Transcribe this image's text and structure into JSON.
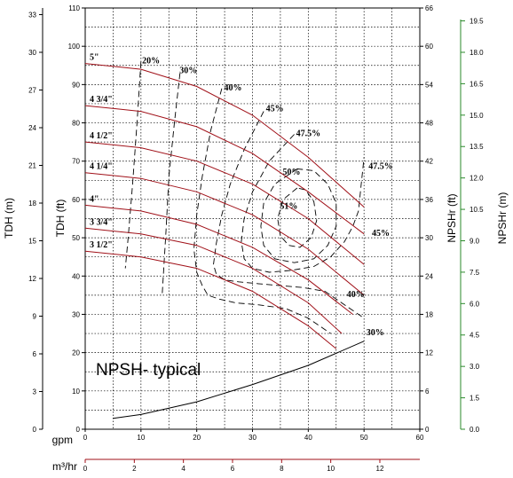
{
  "chart_data": {
    "type": "line",
    "ylim": [
      0,
      110
    ],
    "xlim": [
      0,
      60
    ],
    "colors": {
      "impeller_curve": "#a01018",
      "efficiency_curve": "#000000",
      "npsh_curve": "#000000",
      "grid": "#000000",
      "right_axis": "#2a8a2a"
    },
    "grid": true,
    "axes": {
      "tdh_m": {
        "label": "TDH (m)",
        "ticks": [
          "0",
          "3",
          "6",
          "9",
          "12",
          "15",
          "18",
          "21",
          "24",
          "27",
          "30",
          "33"
        ]
      },
      "tdh_ft": {
        "label": "TDH (ft)",
        "ticks": [
          "0",
          "10",
          "20",
          "30",
          "40",
          "50",
          "60",
          "70",
          "80",
          "90",
          "100",
          "110"
        ]
      },
      "npshr_ft": {
        "label": "NPSHr (ft)",
        "ticks": [
          "0",
          "6",
          "12",
          "18",
          "24",
          "30",
          "36",
          "42",
          "48",
          "54",
          "60",
          "66"
        ]
      },
      "npshr_m": {
        "label": "NPSHr (m)",
        "ticks": [
          "0.0",
          "1.5",
          "3.0",
          "4.5",
          "6.0",
          "7.5",
          "9.0",
          "10.5",
          "12.0",
          "13.5",
          "15.0",
          "16.5",
          "18.0",
          "19.5"
        ]
      },
      "gpm": {
        "label": "gpm",
        "ticks": [
          "0",
          "10",
          "20",
          "30",
          "40",
          "50",
          "60"
        ]
      },
      "m3hr": {
        "label": "m³/hr",
        "ticks": [
          "0",
          "2",
          "4",
          "6",
          "8",
          "10",
          "12"
        ]
      }
    },
    "impeller_series": [
      {
        "name": "5\"",
        "x": [
          0,
          10,
          20,
          30,
          40,
          50
        ],
        "y": [
          95.5,
          94,
          89.5,
          82,
          71,
          58
        ]
      },
      {
        "name": "4 3/4\"",
        "x": [
          0,
          10,
          20,
          30,
          40,
          50
        ],
        "y": [
          84.5,
          83,
          79,
          72,
          62,
          51
        ]
      },
      {
        "name": "4 1/2\"",
        "x": [
          0,
          10,
          20,
          30,
          40,
          50
        ],
        "y": [
          75,
          73.5,
          70,
          64,
          55,
          43
        ]
      },
      {
        "name": "4 1/4\"",
        "x": [
          0,
          10,
          20,
          30,
          40,
          50
        ],
        "y": [
          67,
          65.5,
          62,
          56,
          47,
          35
        ]
      },
      {
        "name": "4\"",
        "x": [
          0,
          10,
          20,
          30,
          40,
          48
        ],
        "y": [
          58.5,
          57,
          53.5,
          47.5,
          39,
          30
        ]
      },
      {
        "name": "3 3/4\"",
        "x": [
          0,
          10,
          20,
          30,
          40,
          46
        ],
        "y": [
          52.5,
          51,
          48,
          42,
          33,
          25
        ]
      },
      {
        "name": "3 1/2\"",
        "x": [
          0,
          10,
          20,
          30,
          40,
          45
        ],
        "y": [
          46.5,
          45,
          42,
          36,
          27,
          21
        ]
      }
    ],
    "efficiency_contours": [
      {
        "name": "20%",
        "x": [
          10,
          9.3,
          8.5,
          7.7,
          7.2
        ],
        "y": [
          96,
          80,
          64,
          50,
          42
        ]
      },
      {
        "name": "30%",
        "x": [
          17,
          16,
          15,
          14.5,
          14,
          13.8
        ],
        "y": [
          93,
          80,
          66,
          52,
          40,
          35
        ]
      },
      {
        "name": "40%",
        "x": [
          24.5,
          22.5,
          21,
          20,
          19.5,
          20,
          21,
          22,
          24,
          27,
          31,
          36,
          40,
          44
        ],
        "y": [
          89,
          78,
          66,
          56,
          47,
          41,
          37.5,
          35,
          34,
          33,
          32.5,
          31.5,
          29,
          25
        ]
      },
      {
        "name": "45%",
        "x": [
          32,
          28.5,
          26,
          24.5,
          23.5,
          23,
          23.5,
          25,
          27.5,
          31,
          35,
          39,
          43,
          46,
          50
        ],
        "y": [
          83,
          73,
          64,
          56,
          48.5,
          43,
          40.5,
          39,
          38.5,
          38,
          37.5,
          37,
          36,
          33,
          29
        ]
      },
      {
        "name": "47.5%",
        "x": [
          37.5,
          33,
          30,
          28.5,
          28,
          28.5,
          30,
          33,
          37,
          41,
          44,
          46.5,
          48,
          49,
          49.5,
          50
        ],
        "y": [
          77,
          70,
          62,
          55,
          49,
          44.5,
          42,
          41,
          41.5,
          42.5,
          45,
          49,
          53,
          57,
          64,
          71
        ]
      },
      {
        "name": "50%",
        "x": [
          38,
          34,
          32,
          31.5,
          32,
          34,
          37.5,
          41,
          43.5,
          45,
          45,
          43.5,
          41,
          38
        ],
        "y": [
          68,
          64,
          59,
          53,
          48,
          44.5,
          43.5,
          44.5,
          48,
          53,
          59,
          64,
          67.5,
          68
        ]
      },
      {
        "name": "51%",
        "x": [
          38,
          35.5,
          34.5,
          35,
          36.5,
          38.5,
          40.5,
          41.5,
          41,
          39.5,
          38
        ],
        "y": [
          63,
          60,
          55,
          50.5,
          48,
          47.5,
          50,
          54.5,
          59.5,
          62.5,
          63
        ]
      }
    ],
    "efficiency_labels": [
      {
        "text": "20%",
        "x": 11.8,
        "y": 95.5
      },
      {
        "text": "30%",
        "x": 18.5,
        "y": 93
      },
      {
        "text": "40%",
        "x": 26.5,
        "y": 88.5
      },
      {
        "text": "45%",
        "x": 34,
        "y": 83
      },
      {
        "text": "47.5%",
        "x": 40,
        "y": 76.5
      },
      {
        "text": "50%",
        "x": 37,
        "y": 66.5
      },
      {
        "text": "51%",
        "x": 36.5,
        "y": 57.5
      },
      {
        "text": "47.5%",
        "x": 53,
        "y": 68
      },
      {
        "text": "45%",
        "x": 53,
        "y": 50.5
      },
      {
        "text": "40%",
        "x": 48.5,
        "y": 34.5
      },
      {
        "text": "30%",
        "x": 52,
        "y": 24.5
      }
    ],
    "npsh_curve": {
      "x": [
        5,
        10,
        20,
        30,
        40,
        50
      ],
      "y_npsh_ft": [
        1.7,
        2.3,
        4.3,
        7.0,
        10.0,
        13.8
      ]
    },
    "annotations": {
      "npsh_label": "NPSH- typical"
    }
  }
}
